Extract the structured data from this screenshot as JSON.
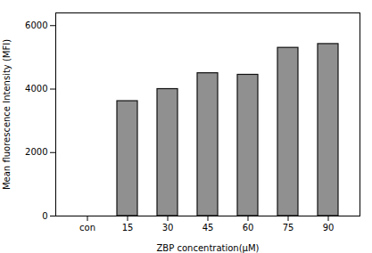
{
  "chart_data": {
    "type": "bar",
    "categories": [
      "con",
      "15",
      "30",
      "45",
      "60",
      "75",
      "90"
    ],
    "values": [
      0,
      3620,
      4000,
      4500,
      4450,
      5300,
      5420
    ],
    "color": "#909090",
    "xlabel": "ZBP concentration(μM)",
    "ylabel": "Mean fluorescence Intensity (MFI)",
    "ylim": [
      0,
      6400
    ],
    "yticks": [
      0,
      2000,
      4000,
      6000
    ],
    "grid": false
  }
}
